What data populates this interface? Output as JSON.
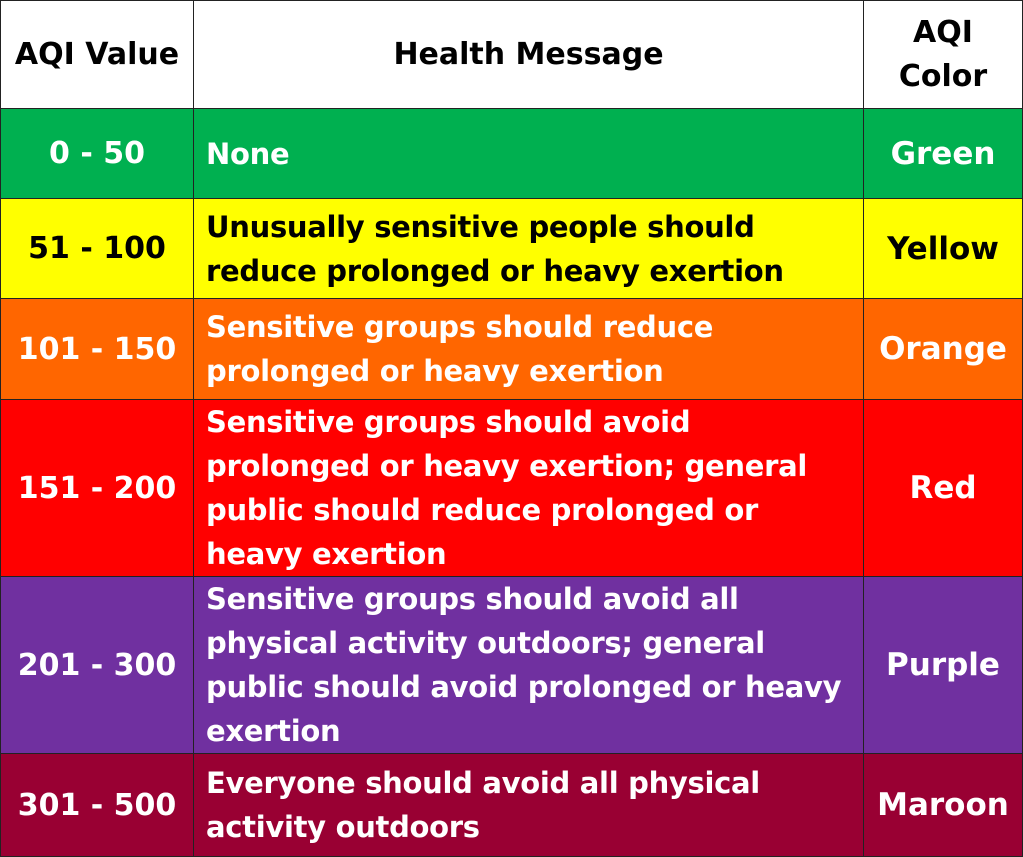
{
  "header": {
    "col1": "AQI Value",
    "col2": "Health Message",
    "col3_line1": "AQI",
    "col3_line2": "Color"
  },
  "rows": [
    {
      "range": "0 - 50",
      "message": "None",
      "color_name": "Green",
      "bg": "#00b050",
      "text_color": "#ffffff"
    },
    {
      "range": "51 - 100",
      "message": "Unusually sensitive people should reduce prolonged or heavy exertion",
      "color_name": "Yellow",
      "bg": "#ffff00",
      "text_color": "#000000"
    },
    {
      "range": "101 - 150",
      "message": "Sensitive groups should reduce prolonged or heavy exertion",
      "color_name": "Orange",
      "bg": "#ff6600",
      "text_color": "#ffffff"
    },
    {
      "range": "151 - 200",
      "message": "Sensitive groups should avoid prolonged or heavy exertion; general public should reduce prolonged or heavy exertion",
      "color_name": "Red",
      "bg": "#ff0000",
      "text_color": "#ffffff"
    },
    {
      "range": "201 - 300",
      "message": "Sensitive groups should avoid all physical activity outdoors; general public should avoid prolonged or heavy exertion",
      "color_name": "Purple",
      "bg": "#7030a0",
      "text_color": "#ffffff"
    },
    {
      "range": "301 - 500",
      "message": "Everyone should avoid all physical activity outdoors",
      "color_name": "Maroon",
      "bg": "#990033",
      "text_color": "#ffffff"
    }
  ]
}
